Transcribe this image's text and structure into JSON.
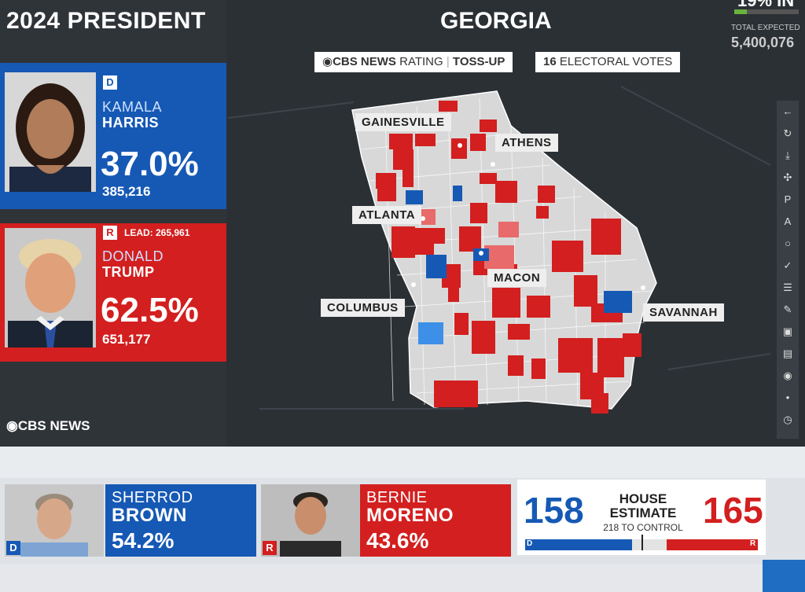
{
  "race": {
    "title": "2024 PRESIDENT",
    "state": "GEORGIA"
  },
  "rating": {
    "source": "CBS NEWS",
    "label": "RATING",
    "value": "TOSS-UP"
  },
  "electoral": {
    "count": "16",
    "label": "ELECTORAL VOTES"
  },
  "reporting": {
    "percent_in": "19% IN",
    "fraction": 0.19,
    "total_label": "TOTAL EXPECTED",
    "total_value": "5,400,076"
  },
  "candidates": [
    {
      "party": "D",
      "first": "KAMALA",
      "last": "HARRIS",
      "pct": "37.0%",
      "votes": "385,216",
      "color": "#1659b5"
    },
    {
      "party": "R",
      "lead": "LEAD: 265,961",
      "first": "DONALD",
      "last": "TRUMP",
      "pct": "62.5%",
      "votes": "651,177",
      "color": "#d31f1f"
    }
  ],
  "brand": "CBS NEWS",
  "cities": [
    "GAINESVILLE",
    "ATHENS",
    "ATLANTA",
    "MACON",
    "COLUMBUS",
    "SAVANNAH"
  ],
  "toolbar": [
    "back-arrow-icon",
    "refresh-icon",
    "download-icon",
    "puzzle-icon",
    "p-icon",
    "a-icon",
    "circle-icon",
    "check-icon",
    "list-icon",
    "pencil-icon",
    "image-icon",
    "camera-icon",
    "eye-icon",
    "dot-icon",
    "clock-icon"
  ],
  "senate": [
    {
      "party": "D",
      "first": "SHERROD",
      "last": "BROWN",
      "pct": "54.2%",
      "color": "#1659b5"
    },
    {
      "party": "R",
      "first": "BERNIE",
      "last": "MORENO",
      "pct": "43.6%",
      "color": "#d31f1f"
    }
  ],
  "house": {
    "dem": "158",
    "rep": "165",
    "label_1": "HOUSE",
    "label_2": "ESTIMATE",
    "control": "218 TO CONTROL",
    "dem_tag": "D",
    "rep_tag": "R"
  },
  "colors": {
    "dem": "#1659b5",
    "rep": "#d31f1f",
    "map_bg": "#d8d8d8"
  }
}
